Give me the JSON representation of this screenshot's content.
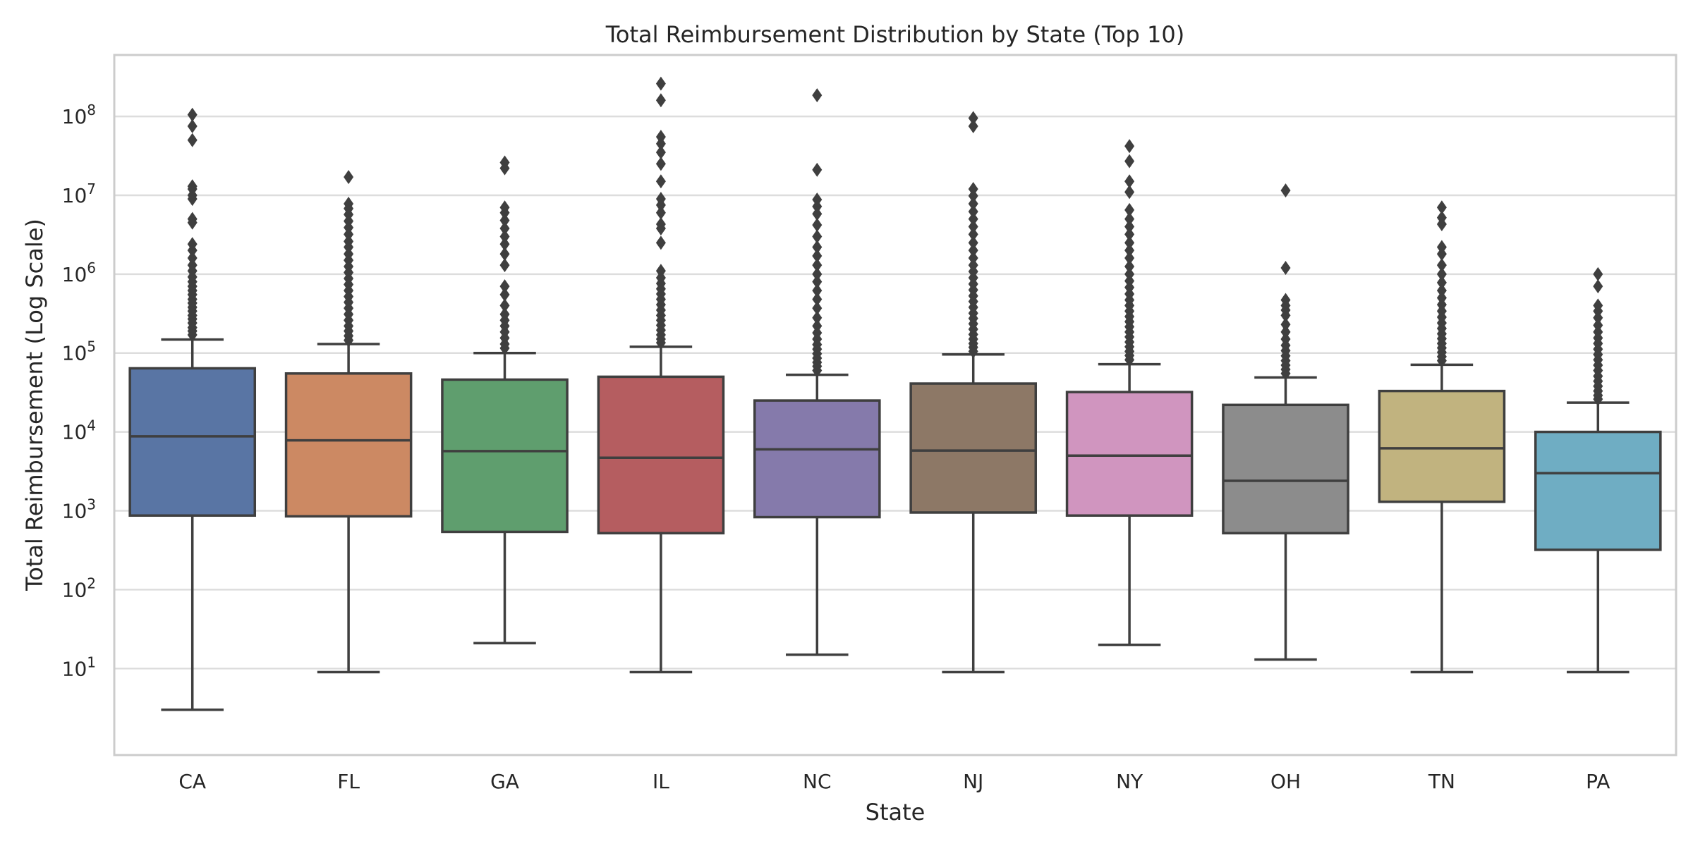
{
  "chart_data": {
    "type": "box",
    "title": "Total Reimbursement Distribution by State (Top 10)",
    "xlabel": "State",
    "ylabel": "Total Reimbursement (Log Scale)",
    "yscale": "log",
    "ylim": [
      0.8,
      600000000
    ],
    "grid": "horizontal",
    "y_ticks": [
      {
        "value": 100,
        "base": "10",
        "exp": "2"
      },
      {
        "value": 1000,
        "base": "10",
        "exp": "3"
      },
      {
        "value": 10000,
        "base": "10",
        "exp": "4"
      },
      {
        "value": 100000,
        "base": "10",
        "exp": "5"
      },
      {
        "value": 1000000,
        "base": "10",
        "exp": "6"
      },
      {
        "value": 10000000,
        "base": "10",
        "exp": "7"
      },
      {
        "value": 100000000,
        "base": "10",
        "exp": "8"
      },
      {
        "value": 10,
        "base": "10",
        "exp": "1"
      }
    ],
    "categories": [
      "CA",
      "FL",
      "GA",
      "IL",
      "NC",
      "NJ",
      "NY",
      "OH",
      "TN",
      "PA"
    ],
    "colors": [
      "#5975a4",
      "#cc8963",
      "#5f9e6e",
      "#b55d60",
      "#857aab",
      "#8d7866",
      "#d095bf",
      "#8c8c8c",
      "#c1b37f",
      "#6fadc3"
    ],
    "edge_color": "#3f3f3f",
    "series": [
      {
        "category": "CA",
        "whisker_low": 3,
        "q1": 870,
        "median": 8800,
        "q3": 64000,
        "whisker_high": 148000,
        "outliers": [
          170000,
          190000,
          210000,
          240000,
          270000,
          300000,
          340000,
          380000,
          430000,
          480000,
          550000,
          620000,
          700000,
          800000,
          920000,
          1100000,
          1300000,
          1600000,
          2000000,
          2400000,
          4500000,
          5000000,
          9000000,
          10000000,
          12000000,
          13000000,
          50000000,
          75000000,
          105000000
        ]
      },
      {
        "category": "FL",
        "whisker_low": 9,
        "q1": 850,
        "median": 7800,
        "q3": 55000,
        "whisker_high": 130000,
        "outliers": [
          145000,
          165000,
          190000,
          220000,
          260000,
          310000,
          370000,
          440000,
          520000,
          620000,
          740000,
          880000,
          1050000,
          1250000,
          1500000,
          1800000,
          2200000,
          2600000,
          3200000,
          3900000,
          4700000,
          5700000,
          6800000,
          7800000,
          17000000
        ]
      },
      {
        "category": "GA",
        "whisker_low": 21,
        "q1": 540,
        "median": 5700,
        "q3": 46000,
        "whisker_high": 100000,
        "outliers": [
          115000,
          130000,
          155000,
          185000,
          220000,
          260000,
          310000,
          400000,
          550000,
          700000,
          1300000,
          1800000,
          2400000,
          3000000,
          3800000,
          4800000,
          6000000,
          7000000,
          22000000,
          26000000
        ]
      },
      {
        "category": "IL",
        "whisker_low": 9,
        "q1": 520,
        "median": 4700,
        "q3": 50000,
        "whisker_high": 120000,
        "outliers": [
          135000,
          150000,
          170000,
          195000,
          225000,
          260000,
          300000,
          350000,
          410000,
          480000,
          560000,
          650000,
          760000,
          900000,
          1100000,
          2500000,
          3800000,
          4300000,
          6000000,
          7500000,
          9000000,
          15000000,
          25000000,
          35000000,
          45000000,
          55000000,
          160000000,
          260000000
        ]
      },
      {
        "category": "NC",
        "whisker_low": 15,
        "q1": 830,
        "median": 6000,
        "q3": 25000,
        "whisker_high": 53000,
        "outliers": [
          60000,
          68000,
          76000,
          86000,
          98000,
          112000,
          128000,
          150000,
          180000,
          220000,
          280000,
          370000,
          480000,
          620000,
          800000,
          1000000,
          1300000,
          1700000,
          2200000,
          3000000,
          4200000,
          5800000,
          7200000,
          8800000,
          21000000,
          185000000
        ]
      },
      {
        "category": "NJ",
        "whisker_low": 9,
        "q1": 950,
        "median": 5800,
        "q3": 41000,
        "whisker_high": 96000,
        "outliers": [
          105000,
          118000,
          132000,
          150000,
          172000,
          200000,
          235000,
          275000,
          320000,
          380000,
          450000,
          530000,
          630000,
          750000,
          900000,
          1080000,
          1300000,
          1600000,
          2000000,
          2500000,
          3200000,
          4000000,
          5000000,
          6200000,
          7800000,
          9800000,
          12000000,
          75000000,
          95000000
        ]
      },
      {
        "category": "NY",
        "whisker_low": 20,
        "q1": 870,
        "median": 5000,
        "q3": 32000,
        "whisker_high": 72000,
        "outliers": [
          82000,
          93000,
          105000,
          120000,
          138000,
          160000,
          185000,
          215000,
          250000,
          290000,
          340000,
          400000,
          470000,
          560000,
          680000,
          820000,
          1000000,
          1250000,
          1600000,
          2000000,
          2500000,
          3200000,
          4000000,
          5000000,
          6500000,
          11000000,
          15000000,
          27000000,
          42000000
        ]
      },
      {
        "category": "OH",
        "whisker_low": 13,
        "q1": 520,
        "median": 2400,
        "q3": 22000,
        "whisker_high": 49000,
        "outliers": [
          55000,
          62000,
          70000,
          80000,
          92000,
          107000,
          125000,
          150000,
          185000,
          230000,
          300000,
          350000,
          400000,
          470000,
          1200000,
          11500000
        ]
      },
      {
        "category": "TN",
        "whisker_low": 9,
        "q1": 1300,
        "median": 6200,
        "q3": 33000,
        "whisker_high": 71000,
        "outliers": [
          80000,
          90000,
          102000,
          116000,
          132000,
          152000,
          175000,
          205000,
          240000,
          285000,
          340000,
          410000,
          500000,
          620000,
          780000,
          1000000,
          1300000,
          1800000,
          2200000,
          4300000,
          5200000,
          7000000
        ]
      },
      {
        "category": "PA",
        "whisker_low": 9,
        "q1": 320,
        "median": 3000,
        "q3": 10000,
        "whisker_high": 23500,
        "outliers": [
          26000,
          29000,
          33000,
          38000,
          44000,
          51000,
          60000,
          70000,
          82000,
          96000,
          112000,
          132000,
          155000,
          185000,
          225000,
          280000,
          340000,
          400000,
          700000,
          1000000
        ]
      }
    ]
  }
}
